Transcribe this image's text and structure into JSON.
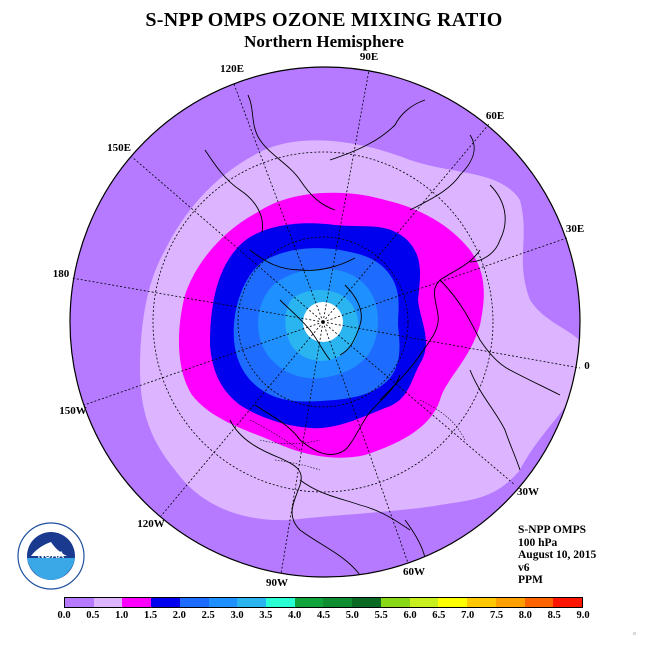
{
  "title": "S-NPP OMPS OZONE MIXING RATIO",
  "subtitle": "Northern Hemisphere",
  "longitude_labels": [
    {
      "key": "90E",
      "text": "90E"
    },
    {
      "key": "60E",
      "text": "60E"
    },
    {
      "key": "30E",
      "text": "30E"
    },
    {
      "key": "0",
      "text": "0"
    },
    {
      "key": "30W",
      "text": "30W"
    },
    {
      "key": "60W",
      "text": "60W"
    },
    {
      "key": "90W",
      "text": "90W"
    },
    {
      "key": "120W",
      "text": "120W"
    },
    {
      "key": "150W",
      "text": "150W"
    },
    {
      "key": "180",
      "text": "180"
    },
    {
      "key": "150E",
      "text": "150E"
    },
    {
      "key": "120E",
      "text": "120E"
    }
  ],
  "info": {
    "instrument": "S-NPP OMPS",
    "level": "100 hPa",
    "date": "August 10, 2015",
    "version": "v6",
    "units": "PPM"
  },
  "logo": {
    "text": "NOAA",
    "icon": "noaa-logo"
  },
  "colorbar": {
    "ticks": [
      "0.0",
      "0.5",
      "1.0",
      "1.5",
      "2.0",
      "2.5",
      "3.0",
      "3.5",
      "4.0",
      "4.5",
      "5.0",
      "5.5",
      "6.0",
      "6.5",
      "7.0",
      "7.5",
      "8.0",
      "8.5",
      "9.0"
    ],
    "colors": [
      "#b57aff",
      "#dcb4ff",
      "#ff00ff",
      "#0000ee",
      "#1e6cff",
      "#1e90ff",
      "#2ab4f0",
      "#28ffd2",
      "#11a33c",
      "#0e8e30",
      "#0a6a24",
      "#88d818",
      "#c8f01e",
      "#ffff00",
      "#ffc800",
      "#ffa000",
      "#ff6400",
      "#ff1400",
      "#8b5a2b"
    ]
  },
  "map_colors": {
    "ocean_fill": "#b57aff",
    "level_0_5": "#dcb4ff",
    "level_1_0": "#ff00ff",
    "level_1_5": "#0000ee",
    "level_2_0": "#1e6cff",
    "level_2_5": "#1e90ff",
    "level_3_0": "#2ab4f0",
    "pole_mask": "#ffffff"
  }
}
